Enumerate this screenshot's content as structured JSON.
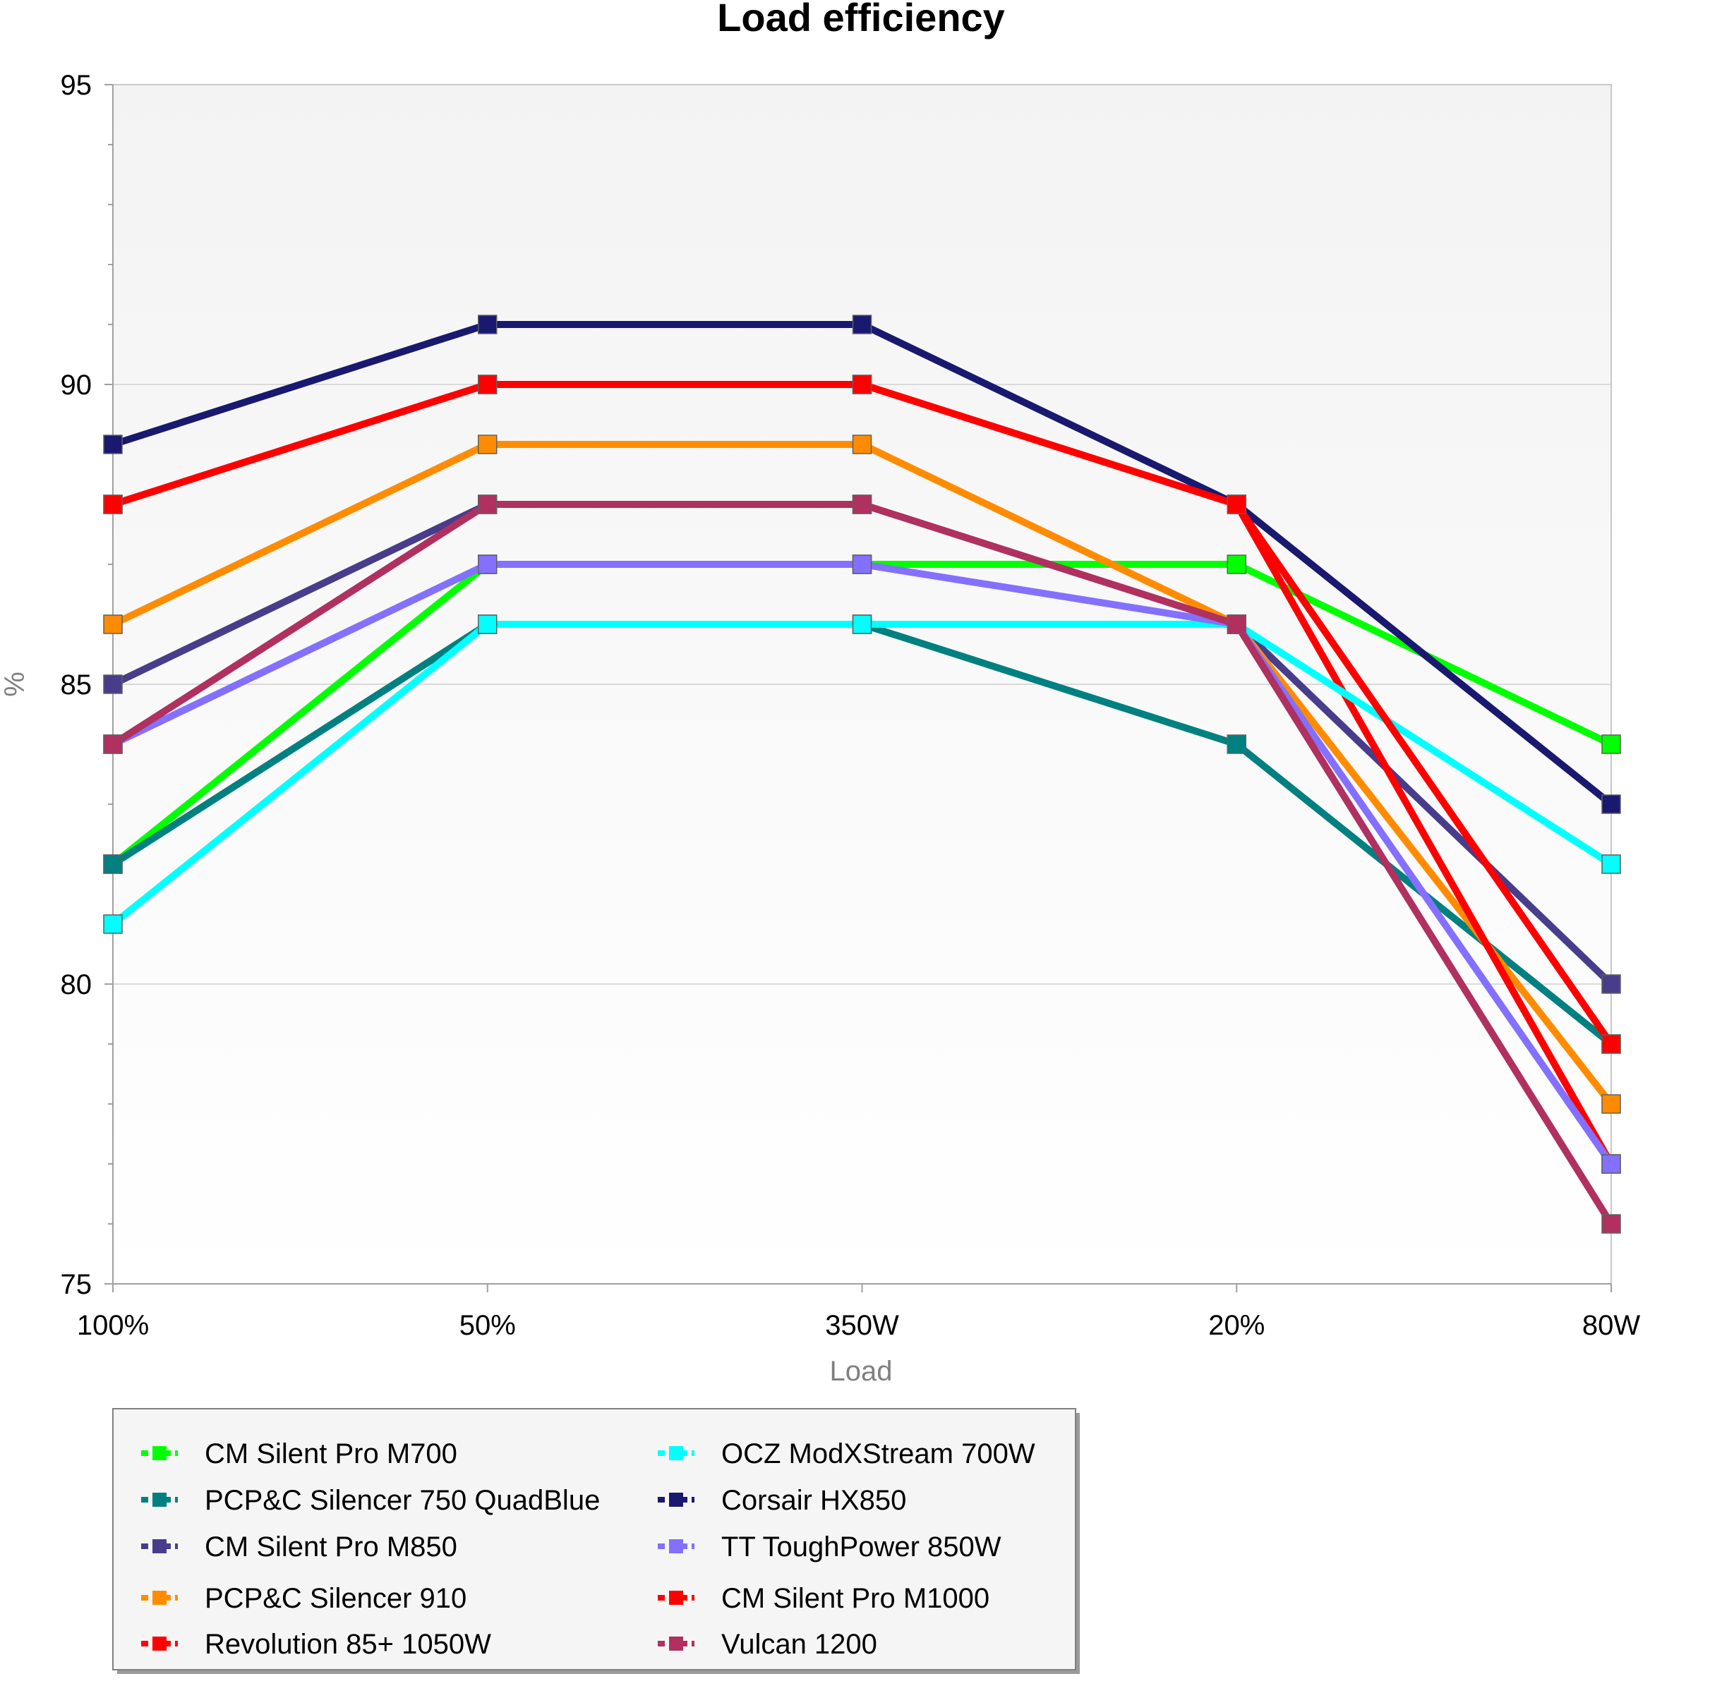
{
  "chart_data": {
    "type": "line",
    "title": "Load efficiency",
    "xlabel": "Load",
    "ylabel": "%",
    "categories": [
      "100%",
      "50%",
      "350W",
      "20%",
      "80W"
    ],
    "ylim": [
      75,
      95
    ],
    "yticks": [
      "75",
      "80",
      "85",
      "90",
      "95"
    ],
    "grid": true,
    "legend_position": "bottom-left",
    "series": [
      {
        "name": "CM Silent Pro M700",
        "color": "#00ff00",
        "values": [
          82,
          87,
          87,
          87,
          84
        ]
      },
      {
        "name": "PCP&C Silencer 750 QuadBlue",
        "color": "#008080",
        "values": [
          82,
          86,
          86,
          84,
          79
        ]
      },
      {
        "name": "CM Silent Pro M850",
        "color": "#483d8b",
        "values": [
          85,
          88,
          88,
          86,
          80
        ]
      },
      {
        "name": "PCP&C Silencer 910",
        "color": "#ff8c00",
        "values": [
          86,
          89,
          89,
          86,
          78
        ]
      },
      {
        "name": "Revolution 85+ 1050W",
        "color": "#ff0000",
        "values": [
          88,
          90,
          90,
          88,
          77
        ]
      },
      {
        "name": "OCZ ModXStream 700W",
        "color": "#00ffff",
        "values": [
          81,
          86,
          86,
          86,
          82
        ]
      },
      {
        "name": "Corsair HX850",
        "color": "#191970",
        "values": [
          89,
          91,
          91,
          88,
          83
        ]
      },
      {
        "name": "TT ToughPower 850W",
        "color": "#8470ff",
        "values": [
          84,
          87,
          87,
          86,
          77
        ]
      },
      {
        "name": "CM Silent Pro M1000",
        "color": "#ff0000",
        "values": [
          88,
          90,
          90,
          88,
          79
        ]
      },
      {
        "name": "Vulcan 1200",
        "color": "#b03060",
        "values": [
          84,
          88,
          88,
          86,
          76
        ]
      }
    ]
  }
}
